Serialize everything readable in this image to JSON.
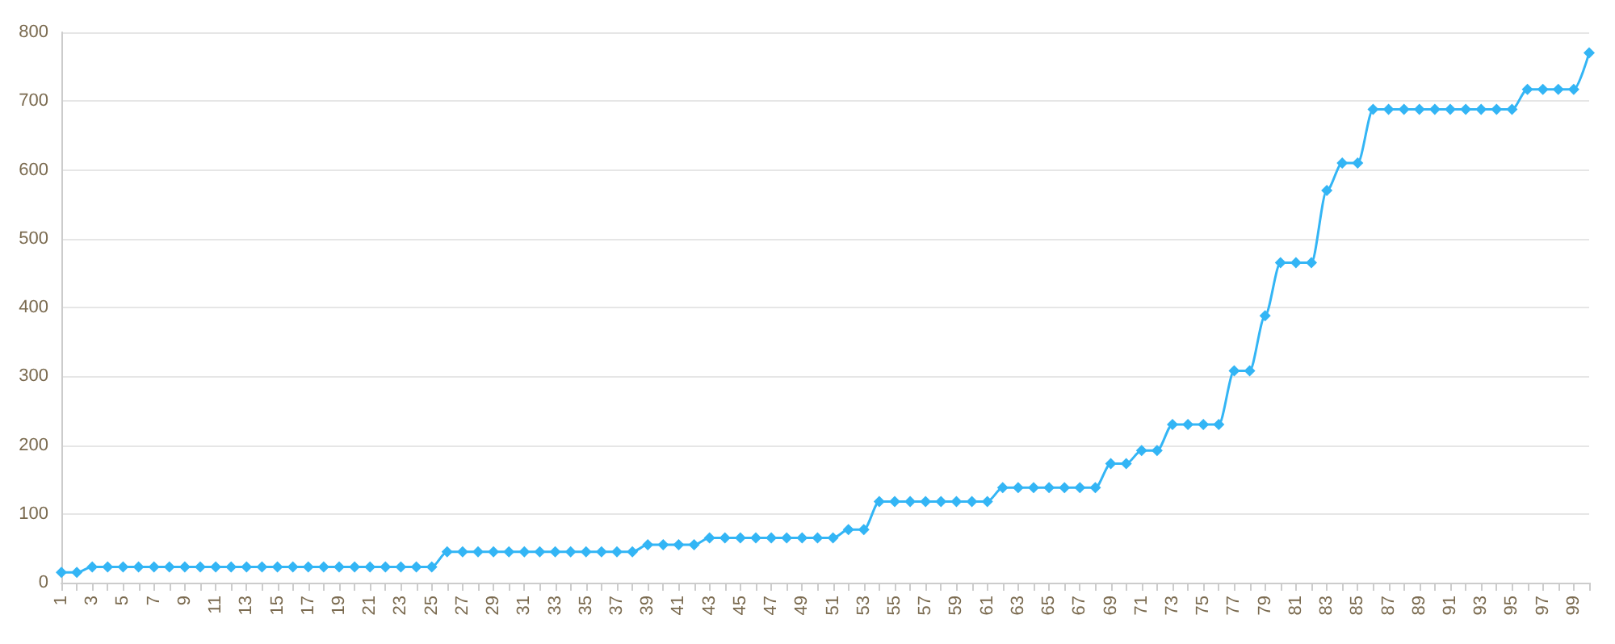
{
  "chart_data": {
    "type": "line",
    "categories": [
      "1",
      null,
      "3",
      null,
      "5",
      null,
      "7",
      null,
      "9",
      null,
      "11",
      null,
      "13",
      null,
      "15",
      null,
      "17",
      null,
      "19",
      null,
      "21",
      null,
      "23",
      null,
      "25",
      null,
      "27",
      null,
      "29",
      null,
      "31",
      null,
      "33",
      null,
      "35",
      null,
      "37",
      null,
      "39",
      null,
      "41",
      null,
      "43",
      null,
      "45",
      null,
      "47",
      null,
      "49",
      null,
      "51",
      null,
      "53",
      null,
      "55",
      null,
      "57",
      null,
      "59",
      null,
      "61",
      null,
      "63",
      null,
      "65",
      null,
      "67",
      null,
      "69",
      null,
      "71",
      null,
      "73",
      null,
      "75",
      null,
      "77",
      null,
      "79",
      null,
      "81",
      null,
      "83",
      null,
      "85",
      null,
      "87",
      null,
      "89",
      null,
      "91",
      null,
      "93",
      null,
      "95",
      null,
      "97",
      null,
      "99",
      null
    ],
    "series": [
      {
        "color": "#33b5f5",
        "values": [
          15,
          15,
          23,
          23,
          23,
          23,
          23,
          23,
          23,
          23,
          23,
          23,
          23,
          23,
          23,
          23,
          23,
          23,
          23,
          23,
          23,
          23,
          23,
          23,
          23,
          45,
          45,
          45,
          45,
          45,
          45,
          45,
          45,
          45,
          45,
          45,
          45,
          45,
          55,
          55,
          55,
          55,
          65,
          65,
          65,
          65,
          65,
          65,
          65,
          65,
          65,
          77,
          77,
          118,
          118,
          118,
          118,
          118,
          118,
          118,
          118,
          138,
          138,
          138,
          138,
          138,
          138,
          138,
          173,
          173,
          192,
          192,
          230,
          230,
          230,
          230,
          308,
          308,
          388,
          465,
          465,
          465,
          570,
          610,
          610,
          688,
          688,
          688,
          688,
          688,
          688,
          688,
          688,
          688,
          688,
          717,
          717,
          717,
          717,
          770
        ]
      }
    ],
    "ylim": [
      0,
      800
    ],
    "yticks": [
      0,
      100,
      200,
      300,
      400,
      500,
      600,
      700,
      800
    ],
    "grid": "y",
    "marker": "diamond",
    "line_style": "solid"
  }
}
